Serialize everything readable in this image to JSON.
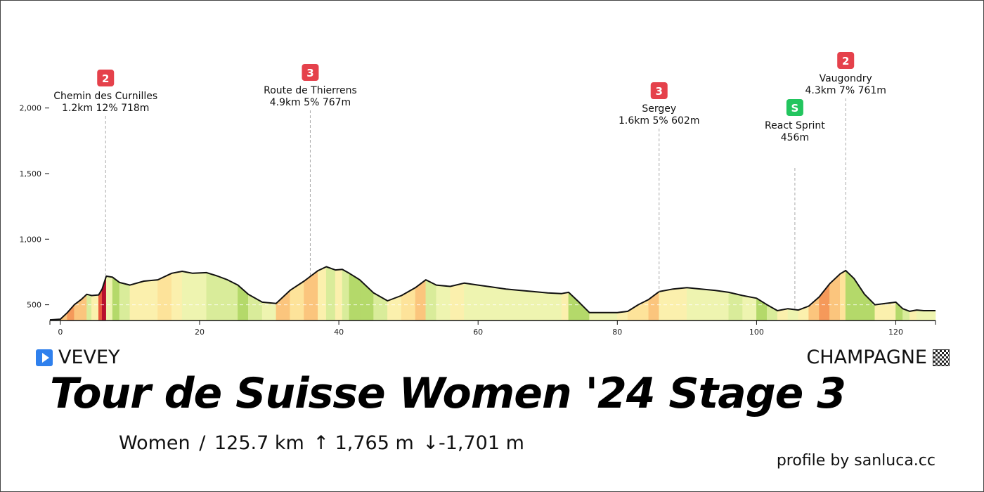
{
  "race": {
    "start": "VEVEY",
    "finish": "CHAMPAGNE",
    "title": "Tour de Suisse Women '24 Stage 3",
    "category": "Women",
    "separator": "/",
    "distance": "125.7 km",
    "ascent": "↑ 1,765 m",
    "descent": "↓-1,701 m",
    "credit": "profile by sanluca.cc",
    "start_icon": "play-icon",
    "finish_icon": "checkered-flag-icon"
  },
  "chart_data": {
    "type": "area",
    "title": "",
    "xlabel": "",
    "ylabel": "",
    "x_range": [
      -1.5,
      125.7
    ],
    "y_range": [
      380,
      2400
    ],
    "x_ticks": [
      0,
      20,
      40,
      60,
      80,
      100,
      120
    ],
    "y_ticks": [
      500,
      1000,
      1500,
      2000
    ],
    "y_tick_labels": [
      "500",
      "1,000",
      "1,500",
      "2,000"
    ],
    "grid": "horizontal dashed inside profile",
    "series": [
      {
        "distance_km": [
          -1.5,
          0,
          1,
          2,
          3,
          3.8,
          4.5,
          5.5,
          6,
          6.6,
          7.5,
          8.5,
          10,
          12,
          14,
          16,
          17.5,
          19,
          21,
          22.5,
          24,
          25.5,
          27,
          29,
          31,
          33,
          35,
          37,
          38.2,
          39.5,
          40.5,
          41.5,
          43,
          45,
          47,
          49,
          51,
          52.5,
          54,
          56,
          58,
          60,
          62,
          64,
          66,
          68,
          70,
          72,
          73,
          74.5,
          76,
          78,
          80,
          81.5,
          83,
          84.5,
          86,
          88,
          90,
          92,
          94,
          96,
          98,
          100,
          101.5,
          103,
          104.5,
          106,
          107.5,
          109,
          110.5,
          112,
          112.8,
          114,
          115.5,
          117,
          118.5,
          120,
          121,
          122,
          123,
          124,
          125.7
        ],
        "elevation_m": [
          385,
          390,
          440,
          500,
          540,
          580,
          570,
          575,
          620,
          718,
          710,
          670,
          650,
          680,
          690,
          740,
          755,
          740,
          745,
          720,
          690,
          650,
          580,
          520,
          510,
          610,
          680,
          760,
          790,
          765,
          770,
          740,
          690,
          590,
          530,
          570,
          630,
          690,
          650,
          640,
          665,
          650,
          635,
          620,
          610,
          600,
          590,
          585,
          595,
          520,
          440,
          440,
          440,
          450,
          500,
          540,
          600,
          620,
          630,
          620,
          610,
          595,
          570,
          550,
          500,
          455,
          470,
          460,
          490,
          560,
          660,
          735,
          761,
          700,
          580,
          500,
          510,
          520,
          470,
          450,
          460,
          455,
          455
        ]
      }
    ],
    "gradient_colors": [
      "#b4d96a",
      "#d9ec9a",
      "#eef4b0",
      "#fbf0ad",
      "#fde39a",
      "#fbc57d",
      "#f5995a",
      "#e8583c",
      "#b8102d"
    ],
    "climbs": [
      {
        "km": 6.5,
        "category": "2",
        "name": "Chemin des Curnilles",
        "info": "1.2km 12% 718m"
      },
      {
        "km": 35.9,
        "category": "3",
        "name": "Route de Thierrens",
        "info": "4.9km 5% 767m"
      },
      {
        "km": 86,
        "category": "3",
        "name": "Sergey",
        "info": "1.6km 5% 602m"
      },
      {
        "km": 105.5,
        "category": "S",
        "name": "React Sprint",
        "info": "456m"
      },
      {
        "km": 112.8,
        "category": "2",
        "name": "Vaugondry",
        "info": "4.3km 7% 761m"
      }
    ],
    "badge_colors": {
      "climb": "#e5414b",
      "sprint": "#22c55e"
    }
  }
}
